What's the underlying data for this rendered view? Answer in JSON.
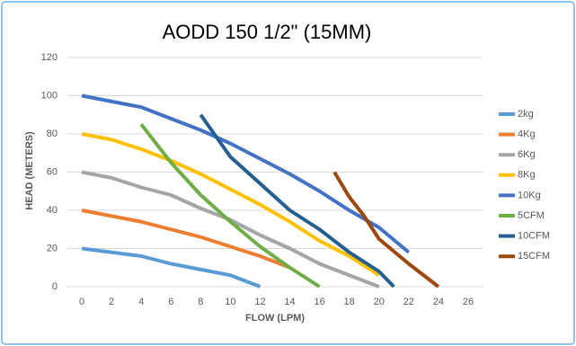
{
  "chart_data": {
    "type": "line",
    "title": "AODD 150 1/2\" (15MM)",
    "x_label": "FLOW (LPM)",
    "y_label": "HEAD (METERS)",
    "xlim": [
      -1,
      27
    ],
    "xticks": [
      0,
      2,
      4,
      6,
      8,
      10,
      12,
      14,
      16,
      18,
      20,
      22,
      24,
      26
    ],
    "ylim": [
      0,
      120
    ],
    "yticks": [
      0,
      20,
      40,
      60,
      80,
      100,
      120
    ],
    "grid": true,
    "legend": "right",
    "series": [
      {
        "name": "2kg",
        "color": "#5b9bd5",
        "x": [
          0,
          2,
          4,
          6,
          8,
          10,
          12
        ],
        "values": [
          20,
          18,
          16,
          12,
          9,
          6,
          0
        ]
      },
      {
        "name": "4Kg",
        "color": "#ed7d31",
        "x": [
          0,
          2,
          4,
          6,
          8,
          10,
          12,
          14
        ],
        "values": [
          40,
          37,
          34,
          30,
          26,
          21,
          16,
          10
        ]
      },
      {
        "name": "6Kg",
        "color": "#a5a5a5",
        "x": [
          0,
          2,
          4,
          6,
          8,
          10,
          12,
          14,
          16,
          18,
          20
        ],
        "values": [
          60,
          57,
          52,
          48,
          41,
          35,
          27,
          20,
          12,
          6,
          0
        ]
      },
      {
        "name": "8Kg",
        "color": "#ffc000",
        "x": [
          0,
          2,
          4,
          6,
          8,
          10,
          12,
          14,
          16,
          18,
          20
        ],
        "values": [
          80,
          77,
          72,
          66,
          59,
          51,
          43,
          34,
          24,
          16,
          6
        ]
      },
      {
        "name": "10Kg",
        "color": "#4472c4",
        "x": [
          0,
          2,
          4,
          6,
          8,
          10,
          12,
          14,
          16,
          18,
          20,
          22
        ],
        "values": [
          100,
          97,
          94,
          88,
          82,
          75,
          67,
          59,
          50,
          40,
          31,
          18
        ]
      },
      {
        "name": "5CFM",
        "color": "#70ad47",
        "x": [
          4,
          6,
          8,
          10,
          12,
          14,
          16
        ],
        "values": [
          85,
          65,
          48,
          34,
          21,
          10,
          0
        ]
      },
      {
        "name": "10CFM",
        "color": "#255e91",
        "x": [
          8,
          10,
          12,
          14,
          16,
          18,
          20,
          21
        ],
        "values": [
          90,
          68,
          54,
          40,
          30,
          18,
          8,
          0
        ]
      },
      {
        "name": "15CFM",
        "color": "#9e480e",
        "x": [
          17,
          18,
          19,
          20,
          22,
          23,
          24
        ],
        "values": [
          60,
          47,
          37,
          25,
          12,
          6,
          0
        ]
      }
    ]
  }
}
